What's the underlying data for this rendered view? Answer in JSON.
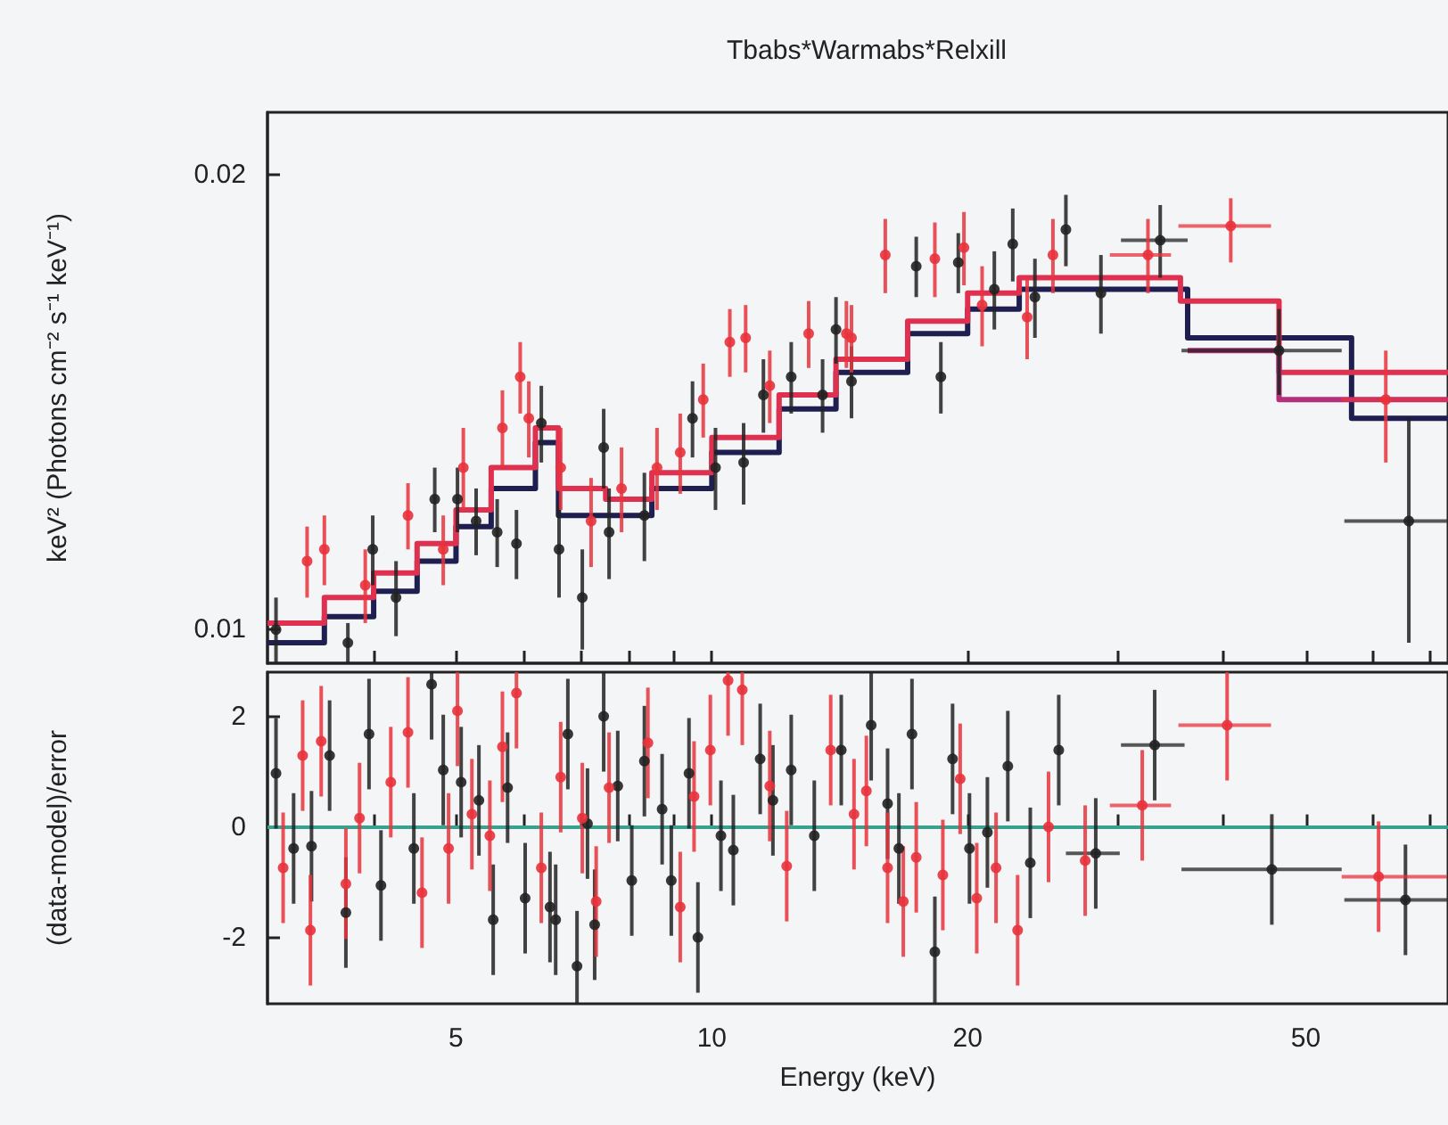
{
  "chart_data": [
    {
      "type": "scatter",
      "title": "Tbabs*Warmabs*Relxill",
      "ylabel": "keV² (Photons cm⁻² s⁻¹ keV⁻¹)",
      "log": "xy",
      "tick_labels": "y",
      "marker": "circle",
      "xlim": [
        3,
        73.5
      ],
      "xticks": [
        {
          "value": 4,
          "label": null
        },
        {
          "value": 5,
          "label": null
        },
        {
          "value": 6,
          "label": null
        },
        {
          "value": 7,
          "label": null
        },
        {
          "value": 8,
          "label": null
        },
        {
          "value": 9,
          "label": null
        },
        {
          "value": 10,
          "label": null
        },
        {
          "value": 20,
          "label": null
        },
        {
          "value": 30,
          "label": null
        },
        {
          "value": 40,
          "label": null
        },
        {
          "value": 50,
          "label": null
        },
        {
          "value": 60,
          "label": null
        },
        {
          "value": 70,
          "label": null
        }
      ],
      "ylim": [
        0.0095,
        0.022
      ],
      "yticks": [
        0.01,
        0.02
      ],
      "series": [
        {
          "color": "#222222",
          "x": [
            3.07,
            3.73,
            3.99,
            4.25,
            4.72,
            5.02,
            5.28,
            5.59,
            5.89,
            6.3,
            6.61,
            7.04,
            7.46,
            7.57,
            8.33,
            9.49,
            10.1,
            10.9,
            11.5,
            12.4,
            13.5,
            14.0,
            14.6,
            17.4,
            18.6,
            19.5,
            21.5,
            22.6,
            24.0,
            26.1,
            28.7,
            33.7,
            46.5,
            66.1
          ],
          "values": [
            0.01,
            0.0098,
            0.0113,
            0.0105,
            0.0122,
            0.0122,
            0.0118,
            0.0116,
            0.0114,
            0.0137,
            0.0113,
            0.0105,
            0.0132,
            0.0116,
            0.0119,
            0.0138,
            0.0128,
            0.0129,
            0.0143,
            0.0147,
            0.0143,
            0.0158,
            0.0146,
            0.0174,
            0.0147,
            0.0175,
            0.0168,
            0.018,
            0.0166,
            0.0184,
            0.0167,
            0.0181,
            0.0153,
            0.0118
          ],
          "errors": [
            0.0005,
            0.0003,
            0.0006,
            0.0006,
            0.0006,
            0.0006,
            0.0006,
            0.0006,
            0.0006,
            0.0008,
            0.0008,
            0.0008,
            0.0008,
            0.0008,
            0.0008,
            0.0008,
            0.0008,
            0.0008,
            0.0008,
            0.0008,
            0.0008,
            0.0008,
            0.0008,
            0.0008,
            0.0008,
            0.0008,
            0.001,
            0.001,
            0.001,
            0.001,
            0.001,
            0.001,
            0.001,
            [
              0.0098,
              0.0138
            ]
          ],
          "xerrors": [
            null,
            null,
            null,
            null,
            null,
            null,
            null,
            null,
            null,
            null,
            null,
            null,
            null,
            null,
            null,
            null,
            null,
            null,
            null,
            null,
            null,
            null,
            null,
            null,
            null,
            null,
            null,
            null,
            null,
            null,
            null,
            [
              30.3,
              36.3
            ],
            [
              35.7,
              55.1
            ],
            [
              55.5,
              73.3
            ]
          ]
        },
        {
          "color": "#e8323c",
          "x": [
            3.34,
            3.5,
            3.91,
            4.39,
            4.83,
            5.1,
            5.67,
            5.95,
            6.09,
            6.64,
            7.21,
            7.83,
            8.62,
            9.18,
            9.77,
            10.5,
            10.96,
            11.7,
            13.0,
            14.4,
            14.6,
            16.0,
            18.3,
            19.8,
            20.8,
            23.5,
            25.2,
            32.6,
            40.8,
            62.1
          ],
          "values": [
            0.0111,
            0.0113,
            0.0107,
            0.0119,
            0.0113,
            0.0128,
            0.0136,
            0.0147,
            0.0138,
            0.0128,
            0.0118,
            0.0124,
            0.0128,
            0.0131,
            0.0142,
            0.0155,
            0.0156,
            0.0145,
            0.0157,
            0.0157,
            0.0156,
            0.0177,
            0.0176,
            0.0179,
            0.0164,
            0.0161,
            0.0177,
            0.0177,
            0.0185,
            0.0142
          ],
          "errors": [
            0.0006,
            0.0006,
            0.0006,
            0.0006,
            0.0006,
            0.0008,
            0.0008,
            0.0008,
            0.0008,
            0.0008,
            0.0008,
            0.0008,
            0.0008,
            0.0008,
            0.0008,
            0.0008,
            0.0008,
            0.0008,
            0.0008,
            0.0008,
            0.0008,
            0.001,
            0.001,
            0.001,
            0.001,
            0.001,
            0.001,
            0.001,
            [
              0.0175,
              0.0193
            ],
            [
              0.0129,
              0.0153
            ]
          ],
          "xerrors": [
            null,
            null,
            null,
            null,
            null,
            null,
            null,
            null,
            null,
            null,
            null,
            null,
            null,
            null,
            null,
            null,
            null,
            null,
            null,
            null,
            null,
            null,
            null,
            null,
            null,
            null,
            null,
            [
              29.4,
              34.7
            ],
            [
              35.4,
              45.5
            ],
            [
              55.1,
              73.3
            ]
          ]
        },
        {
          "type": "step",
          "marker": "none",
          "color": "#1e1e50",
          "x": [
            3,
            3.5,
            4,
            4.5,
            5,
            5.5,
            6.2,
            6.6,
            7.5,
            8.5,
            10,
            12,
            14,
            17,
            20,
            23,
            36.3,
            56.6,
            73.5
          ],
          "values": [
            0.0098,
            0.0102,
            0.0106,
            0.0111,
            0.0117,
            0.0124,
            0.0133,
            0.0119,
            0.0119,
            0.0124,
            0.0131,
            0.014,
            0.0148,
            0.0157,
            0.0163,
            0.0168,
            0.0156,
            0.0138,
            0.0138
          ]
        },
        {
          "type": "step",
          "marker": "none",
          "color": "#e03050",
          "x": [
            3,
            3.5,
            4,
            4.5,
            5,
            5.5,
            6.2,
            6.6,
            7.5,
            8.5,
            10,
            12,
            14,
            17,
            20,
            23,
            35.6,
            46.5,
            73.5
          ],
          "values": [
            0.0101,
            0.0105,
            0.0109,
            0.0114,
            0.012,
            0.0128,
            0.0136,
            0.0124,
            0.0122,
            0.0127,
            0.0134,
            0.0143,
            0.0151,
            0.016,
            0.0167,
            0.0171,
            0.0165,
            0.0148,
            0.0148
          ]
        },
        {
          "type": "step",
          "marker": "none",
          "color": "#b4307a",
          "x": [
            36.3,
            46.5,
            73.5
          ],
          "values": [
            0.0153,
            0.0142,
            0.0142
          ]
        }
      ]
    },
    {
      "type": "scatter",
      "xlabel": "Energy (keV)",
      "ylabel": "(data-model)/error",
      "log": "x",
      "marker": "circle",
      "xlim": [
        3,
        73.5
      ],
      "xticks": [
        {
          "value": 4,
          "label": null
        },
        5,
        {
          "value": 6,
          "label": null
        },
        {
          "value": 7,
          "label": null
        },
        {
          "value": 8,
          "label": null
        },
        {
          "value": 9,
          "label": null
        },
        10,
        20,
        {
          "value": 30,
          "label": null
        },
        {
          "value": 40,
          "label": null
        },
        50,
        {
          "value": 60,
          "label": null
        },
        {
          "value": 70,
          "label": null
        }
      ],
      "ylim": [
        -3.2,
        2.8
      ],
      "yticks": [
        -2,
        0,
        2
      ],
      "ref_lines": [
        {
          "axis": "y",
          "value": 0,
          "color": "#3aa090"
        }
      ],
      "series": [
        {
          "color": "#222222",
          "x": [
            3.07,
            3.22,
            3.38,
            3.55,
            3.71,
            3.95,
            4.08,
            4.46,
            4.68,
            4.83,
            5.07,
            5.32,
            5.53,
            5.75,
            6.03,
            6.45,
            6.55,
            6.77,
            6.94,
            7.14,
            7.28,
            7.46,
            7.75,
            8.05,
            8.33,
            8.74,
            8.96,
            9.4,
            9.63,
            10.25,
            10.6,
            11.4,
            11.8,
            12.4,
            13.2,
            14.2,
            15.4,
            16.1,
            16.6,
            17.2,
            18.3,
            19.2,
            20.1,
            21.1,
            22.3,
            23.7,
            25.6,
            28.3,
            33.2,
            45.6,
            65.5
          ],
          "values": [
            0.97,
            -0.39,
            -0.35,
            1.29,
            -1.55,
            1.68,
            -1.06,
            -0.39,
            2.58,
            1.03,
            0.81,
            0.48,
            -1.68,
            0.71,
            -1.29,
            -1.45,
            -1.68,
            1.68,
            -2.52,
            0.06,
            -1.77,
            2.0,
            0.74,
            -0.97,
            1.19,
            0.32,
            -0.97,
            0.97,
            -2.0,
            -0.16,
            -0.42,
            1.23,
            0.48,
            1.03,
            -0.16,
            1.39,
            1.84,
            0.42,
            -0.39,
            1.68,
            -2.26,
            1.23,
            -0.39,
            -0.1,
            1.1,
            -0.65,
            1.39,
            -0.48,
            1.48,
            -0.77,
            -1.32
          ],
          "errors": [
            1,
            1,
            1,
            1,
            1,
            1,
            1,
            1,
            [
              1.58,
              2.8
            ],
            1,
            1,
            1,
            1,
            1,
            1,
            1,
            1,
            1,
            [
              -3.2,
              -1.52
            ],
            1,
            1,
            [
              1.0,
              2.8
            ],
            1,
            1,
            1,
            1,
            1,
            1,
            1,
            1,
            1,
            1,
            1,
            1,
            1,
            1,
            [
              0.84,
              2.8
            ],
            1,
            1,
            1,
            [
              -3.2,
              -1.26
            ],
            1,
            1,
            1,
            1,
            1,
            1,
            1,
            1,
            1,
            1
          ],
          "xerrors": [
            null,
            null,
            null,
            null,
            null,
            null,
            null,
            null,
            null,
            null,
            null,
            null,
            null,
            null,
            null,
            null,
            null,
            null,
            null,
            null,
            null,
            null,
            null,
            null,
            null,
            null,
            null,
            null,
            null,
            null,
            null,
            null,
            null,
            null,
            null,
            null,
            null,
            null,
            null,
            null,
            null,
            null,
            null,
            null,
            null,
            null,
            null,
            [
              26.1,
              30.2
            ],
            [
              30.3,
              36.0
            ],
            [
              35.7,
              55.1
            ],
            [
              55.5,
              73.3
            ]
          ]
        },
        {
          "color": "#e8323c",
          "x": [
            3.13,
            3.3,
            3.37,
            3.47,
            3.71,
            3.85,
            4.19,
            4.39,
            4.56,
            4.9,
            5.02,
            5.22,
            5.48,
            5.67,
            5.89,
            6.3,
            6.64,
            7.04,
            7.31,
            7.57,
            8.41,
            9.18,
            9.53,
            9.96,
            10.45,
            10.86,
            11.7,
            12.25,
            13.8,
            14.7,
            15.2,
            16.1,
            16.8,
            17.4,
            18.7,
            19.6,
            20.5,
            21.6,
            22.9,
            24.9,
            27.5,
            32.1,
            40.4,
            60.9
          ],
          "values": [
            -0.74,
            1.29,
            -1.87,
            1.55,
            -1.03,
            0.16,
            0.81,
            1.71,
            -1.19,
            -0.39,
            2.1,
            0.23,
            -0.16,
            1.45,
            2.42,
            -0.74,
            0.9,
            0.16,
            -1.35,
            0.71,
            1.52,
            -1.45,
            0.55,
            1.39,
            2.65,
            2.48,
            0.74,
            -0.71,
            1.39,
            0.23,
            0.65,
            -0.74,
            -1.35,
            -0.55,
            -0.87,
            0.87,
            -1.29,
            -0.74,
            -1.87,
            0.0,
            -0.61,
            0.39,
            1.84,
            -0.9
          ],
          "errors": [
            1,
            1,
            1,
            1,
            1,
            1,
            1,
            1,
            1,
            1,
            [
              1.1,
              2.8
            ],
            1,
            1,
            1,
            [
              1.42,
              2.8
            ],
            1,
            1,
            1,
            1,
            1,
            1,
            1,
            1,
            1,
            [
              1.65,
              2.8
            ],
            [
              1.48,
              2.8
            ],
            1,
            1,
            1,
            1,
            1,
            1,
            1,
            1,
            1,
            1,
            1,
            1,
            1,
            1,
            1,
            1,
            [
              0.84,
              2.8
            ],
            1
          ],
          "xerrors": [
            null,
            null,
            null,
            null,
            null,
            null,
            null,
            null,
            null,
            null,
            null,
            null,
            null,
            null,
            null,
            null,
            null,
            null,
            null,
            null,
            null,
            null,
            null,
            null,
            null,
            null,
            null,
            null,
            null,
            null,
            null,
            null,
            null,
            null,
            null,
            null,
            null,
            null,
            null,
            null,
            null,
            [
              29.4,
              34.7
            ],
            [
              35.4,
              45.5
            ],
            [
              55.1,
              73.3
            ]
          ]
        }
      ]
    }
  ]
}
